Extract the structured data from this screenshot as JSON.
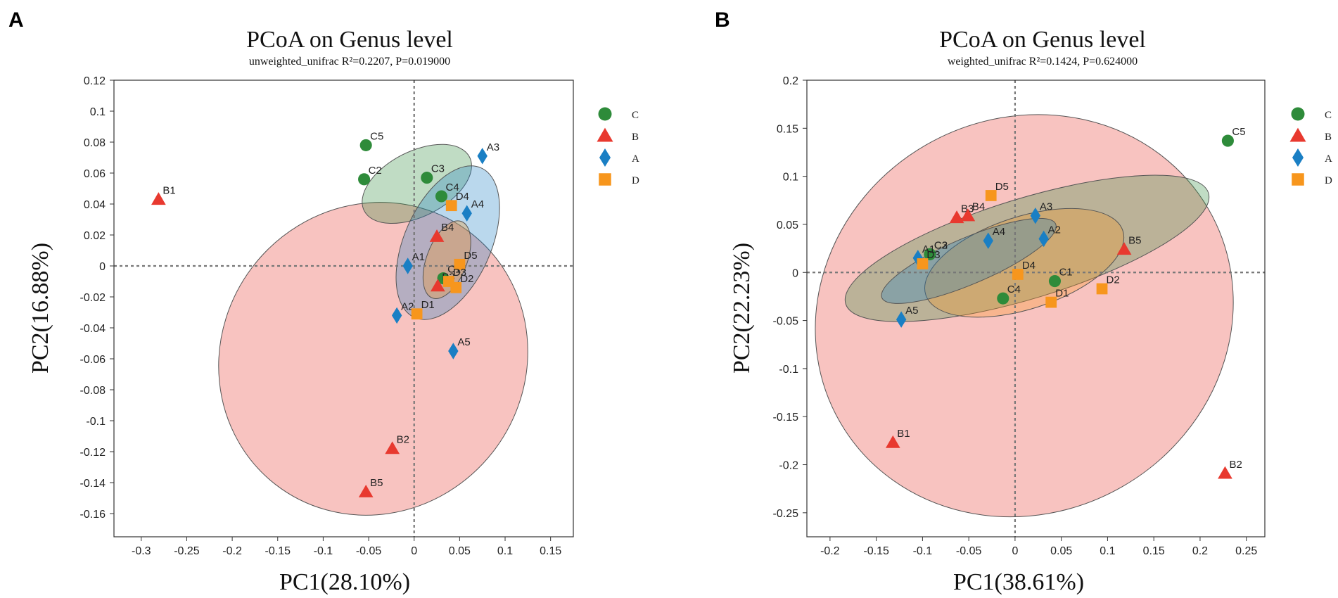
{
  "figure": {
    "panel_labels": [
      "A",
      "B"
    ]
  },
  "colors": {
    "C": "#2e8b3a",
    "B": "#e8392f",
    "A": "#1a7fc4",
    "D": "#f7961d"
  },
  "chart_data": [
    {
      "panel": "A",
      "type": "scatter",
      "title": "PCoA on Genus level",
      "subtitle": "unweighted_unifrac  R²=0.2207, P=0.019000",
      "xlabel": "PC1(28.10%)",
      "ylabel": "PC2(16.88%)",
      "xlim": [
        -0.33,
        0.175
      ],
      "ylim": [
        -0.175,
        0.12
      ],
      "xticks": [
        -0.3,
        -0.25,
        -0.2,
        -0.15,
        -0.1,
        -0.05,
        0,
        0.05,
        0.1,
        0.15
      ],
      "xtick_labels": [
        "-0.3",
        "-0.25",
        "-0.2",
        "-0.15",
        "-0.1",
        "-0.05",
        "0",
        "0.05",
        "0.1",
        "0.15"
      ],
      "yticks": [
        0.12,
        0.1,
        0.08,
        0.06,
        0.04,
        0.02,
        0,
        -0.02,
        -0.04,
        -0.06,
        -0.08,
        -0.1,
        -0.12,
        -0.14,
        -0.16
      ],
      "ytick_labels": [
        "0.12",
        "0.1",
        "0.08",
        "0.06",
        "0.04",
        "0.02",
        "0",
        "-0.02",
        "-0.04",
        "-0.06",
        "-0.08",
        "-0.1",
        "-0.12",
        "-0.14",
        "-0.16"
      ],
      "legend": [
        {
          "group": "C",
          "label": "C",
          "shape": "circle"
        },
        {
          "group": "B",
          "label": "B",
          "shape": "triangle"
        },
        {
          "group": "A",
          "label": "A",
          "shape": "diamond"
        },
        {
          "group": "D",
          "label": "D",
          "shape": "square"
        }
      ],
      "ellipses": [
        {
          "group": "B",
          "cx": -0.045,
          "cy": -0.06,
          "rx": 0.175,
          "ry": 0.098,
          "angle": -52
        },
        {
          "group": "C",
          "cx": 0.003,
          "cy": 0.053,
          "rx": 0.065,
          "ry": 0.021,
          "angle": -27
        },
        {
          "group": "A",
          "cx": 0.037,
          "cy": 0.015,
          "rx": 0.09,
          "ry": 0.028,
          "angle": -66
        },
        {
          "group": "D",
          "cx": 0.036,
          "cy": 0.004,
          "rx": 0.045,
          "ry": 0.013,
          "angle": -69
        }
      ],
      "points": [
        {
          "label": "C5",
          "group": "C",
          "x": -0.053,
          "y": 0.078
        },
        {
          "label": "C2",
          "group": "C",
          "x": -0.055,
          "y": 0.056
        },
        {
          "label": "C3",
          "group": "C",
          "x": 0.014,
          "y": 0.057
        },
        {
          "label": "C4",
          "group": "C",
          "x": 0.03,
          "y": 0.045
        },
        {
          "label": "C1",
          "group": "C",
          "x": 0.032,
          "y": -0.008
        },
        {
          "label": "B1",
          "group": "B",
          "x": -0.281,
          "y": 0.043
        },
        {
          "label": "B4",
          "group": "B",
          "x": 0.025,
          "y": 0.019
        },
        {
          "label": "B3",
          "group": "B",
          "x": 0.026,
          "y": -0.013
        },
        {
          "label": "B2",
          "group": "B",
          "x": -0.024,
          "y": -0.118
        },
        {
          "label": "B5",
          "group": "B",
          "x": -0.053,
          "y": -0.146
        },
        {
          "label": "A3",
          "group": "A",
          "x": 0.075,
          "y": 0.071
        },
        {
          "label": "A4",
          "group": "A",
          "x": 0.058,
          "y": 0.034
        },
        {
          "label": "A1",
          "group": "A",
          "x": -0.007,
          "y": 0
        },
        {
          "label": "A2",
          "group": "A",
          "x": -0.019,
          "y": -0.032
        },
        {
          "label": "A5",
          "group": "A",
          "x": 0.043,
          "y": -0.055
        },
        {
          "label": "D4",
          "group": "D",
          "x": 0.041,
          "y": 0.039
        },
        {
          "label": "D5",
          "group": "D",
          "x": 0.05,
          "y": 0.001
        },
        {
          "label": "D3",
          "group": "D",
          "x": 0.038,
          "y": -0.01
        },
        {
          "label": "D2",
          "group": "D",
          "x": 0.046,
          "y": -0.014
        },
        {
          "label": "D1",
          "group": "D",
          "x": 0.003,
          "y": -0.031
        }
      ]
    },
    {
      "panel": "B",
      "type": "scatter",
      "title": "PCoA on Genus level",
      "subtitle": "weighted_unifrac  R²=0.1424, P=0.624000",
      "xlabel": "PC1(38.61%)",
      "ylabel": "PC2(22.23%)",
      "xlim": [
        -0.225,
        0.27
      ],
      "ylim": [
        -0.275,
        0.2
      ],
      "xticks": [
        -0.2,
        -0.15,
        -0.1,
        -0.05,
        0,
        0.05,
        0.1,
        0.15,
        0.2,
        0.25
      ],
      "xtick_labels": [
        "-0.2",
        "-0.15",
        "-0.1",
        "-0.05",
        "0",
        "0.05",
        "0.1",
        "0.15",
        "0.2",
        "0.25"
      ],
      "yticks": [
        0.2,
        0.15,
        0.1,
        0.05,
        0,
        -0.05,
        -0.1,
        -0.15,
        -0.2,
        -0.25
      ],
      "ytick_labels": [
        "0.2",
        "0.15",
        "0.1",
        "0.05",
        "0",
        "-0.05",
        "-0.1",
        "-0.15",
        "-0.2",
        "-0.25"
      ],
      "legend": [
        {
          "group": "C",
          "label": "C",
          "shape": "circle"
        },
        {
          "group": "B",
          "label": "B",
          "shape": "triangle"
        },
        {
          "group": "A",
          "label": "A",
          "shape": "diamond"
        },
        {
          "group": "D",
          "label": "D",
          "shape": "square"
        }
      ],
      "ellipses": [
        {
          "group": "B",
          "cx": 0.01,
          "cy": -0.045,
          "rx": 0.23,
          "ry": 0.205,
          "angle": -30
        },
        {
          "group": "C",
          "cx": 0.013,
          "cy": 0.025,
          "rx": 0.205,
          "ry": 0.052,
          "angle": -17
        },
        {
          "group": "D",
          "cx": 0.01,
          "cy": 0.01,
          "rx": 0.112,
          "ry": 0.048,
          "angle": -18
        },
        {
          "group": "A",
          "cx": -0.05,
          "cy": 0.012,
          "rx": 0.102,
          "ry": 0.024,
          "angle": -23
        }
      ],
      "points": [
        {
          "label": "C5",
          "group": "C",
          "x": 0.23,
          "y": 0.137
        },
        {
          "label": "C2",
          "group": "C",
          "x": -0.092,
          "y": 0.019
        },
        {
          "label": "C3",
          "group": "C",
          "x": -0.092,
          "y": 0.019
        },
        {
          "label": "C1",
          "group": "C",
          "x": 0.043,
          "y": -0.009
        },
        {
          "label": "C4",
          "group": "C",
          "x": -0.013,
          "y": -0.027
        },
        {
          "label": "B3",
          "group": "B",
          "x": -0.063,
          "y": 0.057
        },
        {
          "label": "B4",
          "group": "B",
          "x": -0.051,
          "y": 0.059
        },
        {
          "label": "B5",
          "group": "B",
          "x": 0.118,
          "y": 0.024
        },
        {
          "label": "B1",
          "group": "B",
          "x": -0.132,
          "y": -0.177
        },
        {
          "label": "B2",
          "group": "B",
          "x": 0.227,
          "y": -0.209
        },
        {
          "label": "A3",
          "group": "A",
          "x": 0.022,
          "y": 0.059
        },
        {
          "label": "A4",
          "group": "A",
          "x": -0.029,
          "y": 0.033
        },
        {
          "label": "A2",
          "group": "A",
          "x": 0.031,
          "y": 0.035
        },
        {
          "label": "A1",
          "group": "A",
          "x": -0.105,
          "y": 0.015
        },
        {
          "label": "A5",
          "group": "A",
          "x": -0.123,
          "y": -0.049
        },
        {
          "label": "D5",
          "group": "D",
          "x": -0.026,
          "y": 0.08
        },
        {
          "label": "D3",
          "group": "D",
          "x": -0.1,
          "y": 0.009
        },
        {
          "label": "D4",
          "group": "D",
          "x": 0.003,
          "y": -0.002
        },
        {
          "label": "D1",
          "group": "D",
          "x": 0.039,
          "y": -0.031
        },
        {
          "label": "D2",
          "group": "D",
          "x": 0.094,
          "y": -0.017
        }
      ]
    }
  ]
}
